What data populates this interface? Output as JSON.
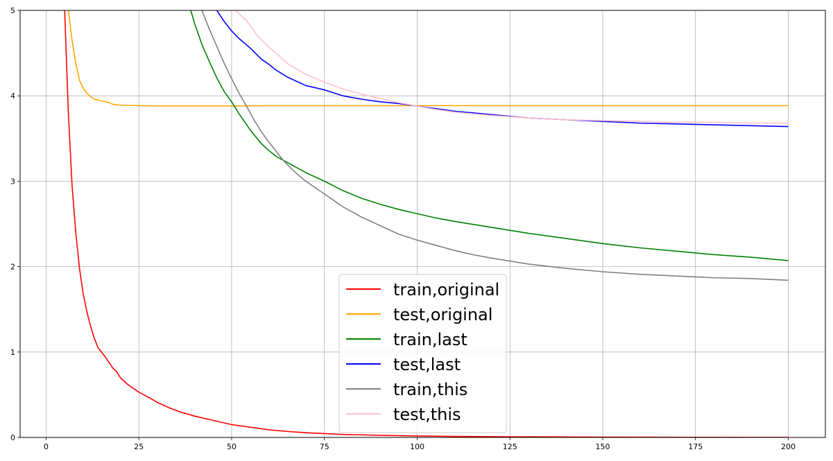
{
  "chart_data": {
    "type": "line",
    "title": "",
    "xlabel": "",
    "ylabel": "",
    "xlim": [
      -7,
      210
    ],
    "ylim": [
      0,
      5
    ],
    "xticks": [
      0,
      25,
      50,
      75,
      100,
      125,
      150,
      175,
      200
    ],
    "yticks": [
      0,
      1,
      2,
      3,
      4,
      5
    ],
    "grid": true,
    "legend": "lower-center",
    "series": [
      {
        "name": "train,original",
        "color": "#ff0000",
        "points": [
          [
            5,
            5.0
          ],
          [
            6,
            3.8
          ],
          [
            7,
            2.95
          ],
          [
            8,
            2.4
          ],
          [
            9,
            1.98
          ],
          [
            10,
            1.68
          ],
          [
            11,
            1.47
          ],
          [
            12,
            1.3
          ],
          [
            13,
            1.16
          ],
          [
            14,
            1.05
          ],
          [
            16,
            0.94
          ],
          [
            18,
            0.81
          ],
          [
            19,
            0.77
          ],
          [
            20,
            0.7
          ],
          [
            22,
            0.62
          ],
          [
            25,
            0.53
          ],
          [
            28,
            0.46
          ],
          [
            30,
            0.41
          ],
          [
            33,
            0.35
          ],
          [
            36,
            0.3
          ],
          [
            40,
            0.25
          ],
          [
            45,
            0.2
          ],
          [
            50,
            0.15
          ],
          [
            55,
            0.12
          ],
          [
            60,
            0.09
          ],
          [
            65,
            0.07
          ],
          [
            70,
            0.055
          ],
          [
            75,
            0.045
          ],
          [
            80,
            0.035
          ],
          [
            90,
            0.025
          ],
          [
            100,
            0.017
          ],
          [
            110,
            0.012
          ],
          [
            125,
            0.008
          ],
          [
            150,
            0.004
          ],
          [
            175,
            0.002
          ],
          [
            200,
            0.001
          ]
        ]
      },
      {
        "name": "test,original",
        "color": "#ffa500",
        "points": [
          [
            6,
            5.0
          ],
          [
            7,
            4.65
          ],
          [
            8,
            4.38
          ],
          [
            9,
            4.18
          ],
          [
            10,
            4.09
          ],
          [
            11,
            4.03
          ],
          [
            12,
            3.99
          ],
          [
            13,
            3.96
          ],
          [
            15,
            3.94
          ],
          [
            17,
            3.92
          ],
          [
            18,
            3.9
          ],
          [
            20,
            3.89
          ],
          [
            25,
            3.885
          ],
          [
            30,
            3.88
          ],
          [
            40,
            3.88
          ],
          [
            50,
            3.88
          ],
          [
            60,
            3.885
          ],
          [
            75,
            3.885
          ],
          [
            100,
            3.885
          ],
          [
            125,
            3.885
          ],
          [
            150,
            3.885
          ],
          [
            175,
            3.885
          ],
          [
            200,
            3.885
          ]
        ]
      },
      {
        "name": "train,last",
        "color": "#008000",
        "points": [
          [
            39,
            5.0
          ],
          [
            40,
            4.85
          ],
          [
            42,
            4.6
          ],
          [
            44,
            4.4
          ],
          [
            46,
            4.21
          ],
          [
            48,
            4.05
          ],
          [
            50,
            3.93
          ],
          [
            52,
            3.79
          ],
          [
            55,
            3.6
          ],
          [
            58,
            3.44
          ],
          [
            60,
            3.36
          ],
          [
            62,
            3.29
          ],
          [
            65,
            3.22
          ],
          [
            70,
            3.1
          ],
          [
            75,
            3.0
          ],
          [
            80,
            2.89
          ],
          [
            85,
            2.8
          ],
          [
            90,
            2.73
          ],
          [
            95,
            2.67
          ],
          [
            100,
            2.62
          ],
          [
            105,
            2.57
          ],
          [
            110,
            2.53
          ],
          [
            120,
            2.46
          ],
          [
            130,
            2.39
          ],
          [
            140,
            2.33
          ],
          [
            150,
            2.27
          ],
          [
            160,
            2.22
          ],
          [
            170,
            2.18
          ],
          [
            180,
            2.14
          ],
          [
            190,
            2.11
          ],
          [
            200,
            2.07
          ]
        ]
      },
      {
        "name": "test,last",
        "color": "#0000ff",
        "points": [
          [
            46,
            5.0
          ],
          [
            48,
            4.87
          ],
          [
            50,
            4.76
          ],
          [
            52,
            4.67
          ],
          [
            55,
            4.56
          ],
          [
            58,
            4.43
          ],
          [
            60,
            4.37
          ],
          [
            62,
            4.3
          ],
          [
            65,
            4.22
          ],
          [
            68,
            4.16
          ],
          [
            70,
            4.12
          ],
          [
            75,
            4.07
          ],
          [
            80,
            4.0
          ],
          [
            85,
            3.96
          ],
          [
            90,
            3.93
          ],
          [
            95,
            3.91
          ],
          [
            100,
            3.88
          ],
          [
            105,
            3.85
          ],
          [
            110,
            3.82
          ],
          [
            115,
            3.8
          ],
          [
            120,
            3.78
          ],
          [
            130,
            3.74
          ],
          [
            140,
            3.72
          ],
          [
            150,
            3.7
          ],
          [
            160,
            3.68
          ],
          [
            170,
            3.67
          ],
          [
            180,
            3.66
          ],
          [
            190,
            3.65
          ],
          [
            200,
            3.64
          ]
        ]
      },
      {
        "name": "train,this",
        "color": "#808080",
        "points": [
          [
            42,
            5.0
          ],
          [
            44,
            4.78
          ],
          [
            46,
            4.58
          ],
          [
            48,
            4.38
          ],
          [
            50,
            4.2
          ],
          [
            52,
            4.03
          ],
          [
            54,
            3.88
          ],
          [
            56,
            3.72
          ],
          [
            58,
            3.58
          ],
          [
            60,
            3.46
          ],
          [
            62,
            3.35
          ],
          [
            64,
            3.24
          ],
          [
            66,
            3.15
          ],
          [
            68,
            3.07
          ],
          [
            70,
            3.0
          ],
          [
            72,
            2.94
          ],
          [
            75,
            2.85
          ],
          [
            78,
            2.76
          ],
          [
            80,
            2.7
          ],
          [
            85,
            2.58
          ],
          [
            90,
            2.48
          ],
          [
            95,
            2.38
          ],
          [
            100,
            2.31
          ],
          [
            105,
            2.25
          ],
          [
            110,
            2.19
          ],
          [
            115,
            2.14
          ],
          [
            120,
            2.1
          ],
          [
            130,
            2.03
          ],
          [
            140,
            1.98
          ],
          [
            150,
            1.94
          ],
          [
            160,
            1.91
          ],
          [
            170,
            1.89
          ],
          [
            180,
            1.87
          ],
          [
            190,
            1.86
          ],
          [
            195,
            1.85
          ],
          [
            200,
            1.84
          ]
        ]
      },
      {
        "name": "test,this",
        "color": "#ffc0cb",
        "points": [
          [
            51,
            5.0
          ],
          [
            54,
            4.88
          ],
          [
            57,
            4.7
          ],
          [
            60,
            4.57
          ],
          [
            63,
            4.46
          ],
          [
            65,
            4.38
          ],
          [
            68,
            4.3
          ],
          [
            70,
            4.25
          ],
          [
            75,
            4.16
          ],
          [
            80,
            4.08
          ],
          [
            85,
            4.02
          ],
          [
            90,
            3.97
          ],
          [
            95,
            3.92
          ],
          [
            100,
            3.88
          ],
          [
            105,
            3.84
          ],
          [
            110,
            3.81
          ],
          [
            120,
            3.77
          ],
          [
            130,
            3.74
          ],
          [
            140,
            3.72
          ],
          [
            150,
            3.71
          ],
          [
            160,
            3.7
          ],
          [
            170,
            3.69
          ],
          [
            180,
            3.69
          ],
          [
            190,
            3.68
          ],
          [
            200,
            3.68
          ]
        ]
      }
    ]
  }
}
